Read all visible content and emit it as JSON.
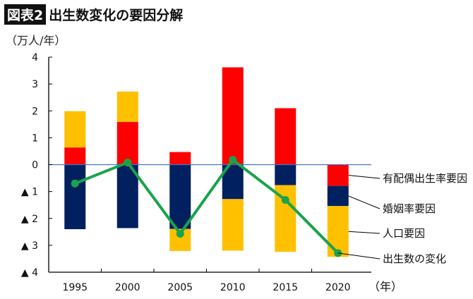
{
  "header": {
    "badge": "図表2",
    "title": "出生数変化の要因分解"
  },
  "chart_data": {
    "type": "bar",
    "stacked": true,
    "title": "出生数変化の要因分解",
    "ylabel": "（万人/年）",
    "xlabel": "（年）",
    "ylim": [
      -4,
      4
    ],
    "yticks": [
      4,
      3,
      2,
      1,
      0,
      -1,
      -2,
      -3,
      -4
    ],
    "ytick_labels": [
      "4",
      "3",
      "2",
      "1",
      "0",
      "▲ 1",
      "▲ 2",
      "▲ 3",
      "▲ 4"
    ],
    "categories": [
      "1995",
      "2000",
      "2005",
      "2010",
      "2015",
      "2020"
    ],
    "grid": false,
    "series": [
      {
        "name": "有配偶出生率要因",
        "type": "bar",
        "color": "#ff0000",
        "values": [
          0.64,
          1.59,
          0.47,
          3.62,
          2.1,
          -0.79
        ]
      },
      {
        "name": "婚姻率要因",
        "type": "bar",
        "color": "#002060",
        "values": [
          -2.4,
          -2.36,
          -2.39,
          -1.28,
          -0.76,
          -0.75
        ]
      },
      {
        "name": "人口要因",
        "type": "bar",
        "color": "#ffc000",
        "values": [
          1.35,
          1.13,
          -0.82,
          -1.92,
          -2.48,
          -1.89
        ]
      },
      {
        "name": "出生数の変化",
        "type": "line",
        "color": "#1aa34a",
        "values": [
          -0.7,
          0.08,
          -2.57,
          0.18,
          -1.31,
          -3.29
        ]
      }
    ],
    "legend": "right, leader-line labels"
  }
}
